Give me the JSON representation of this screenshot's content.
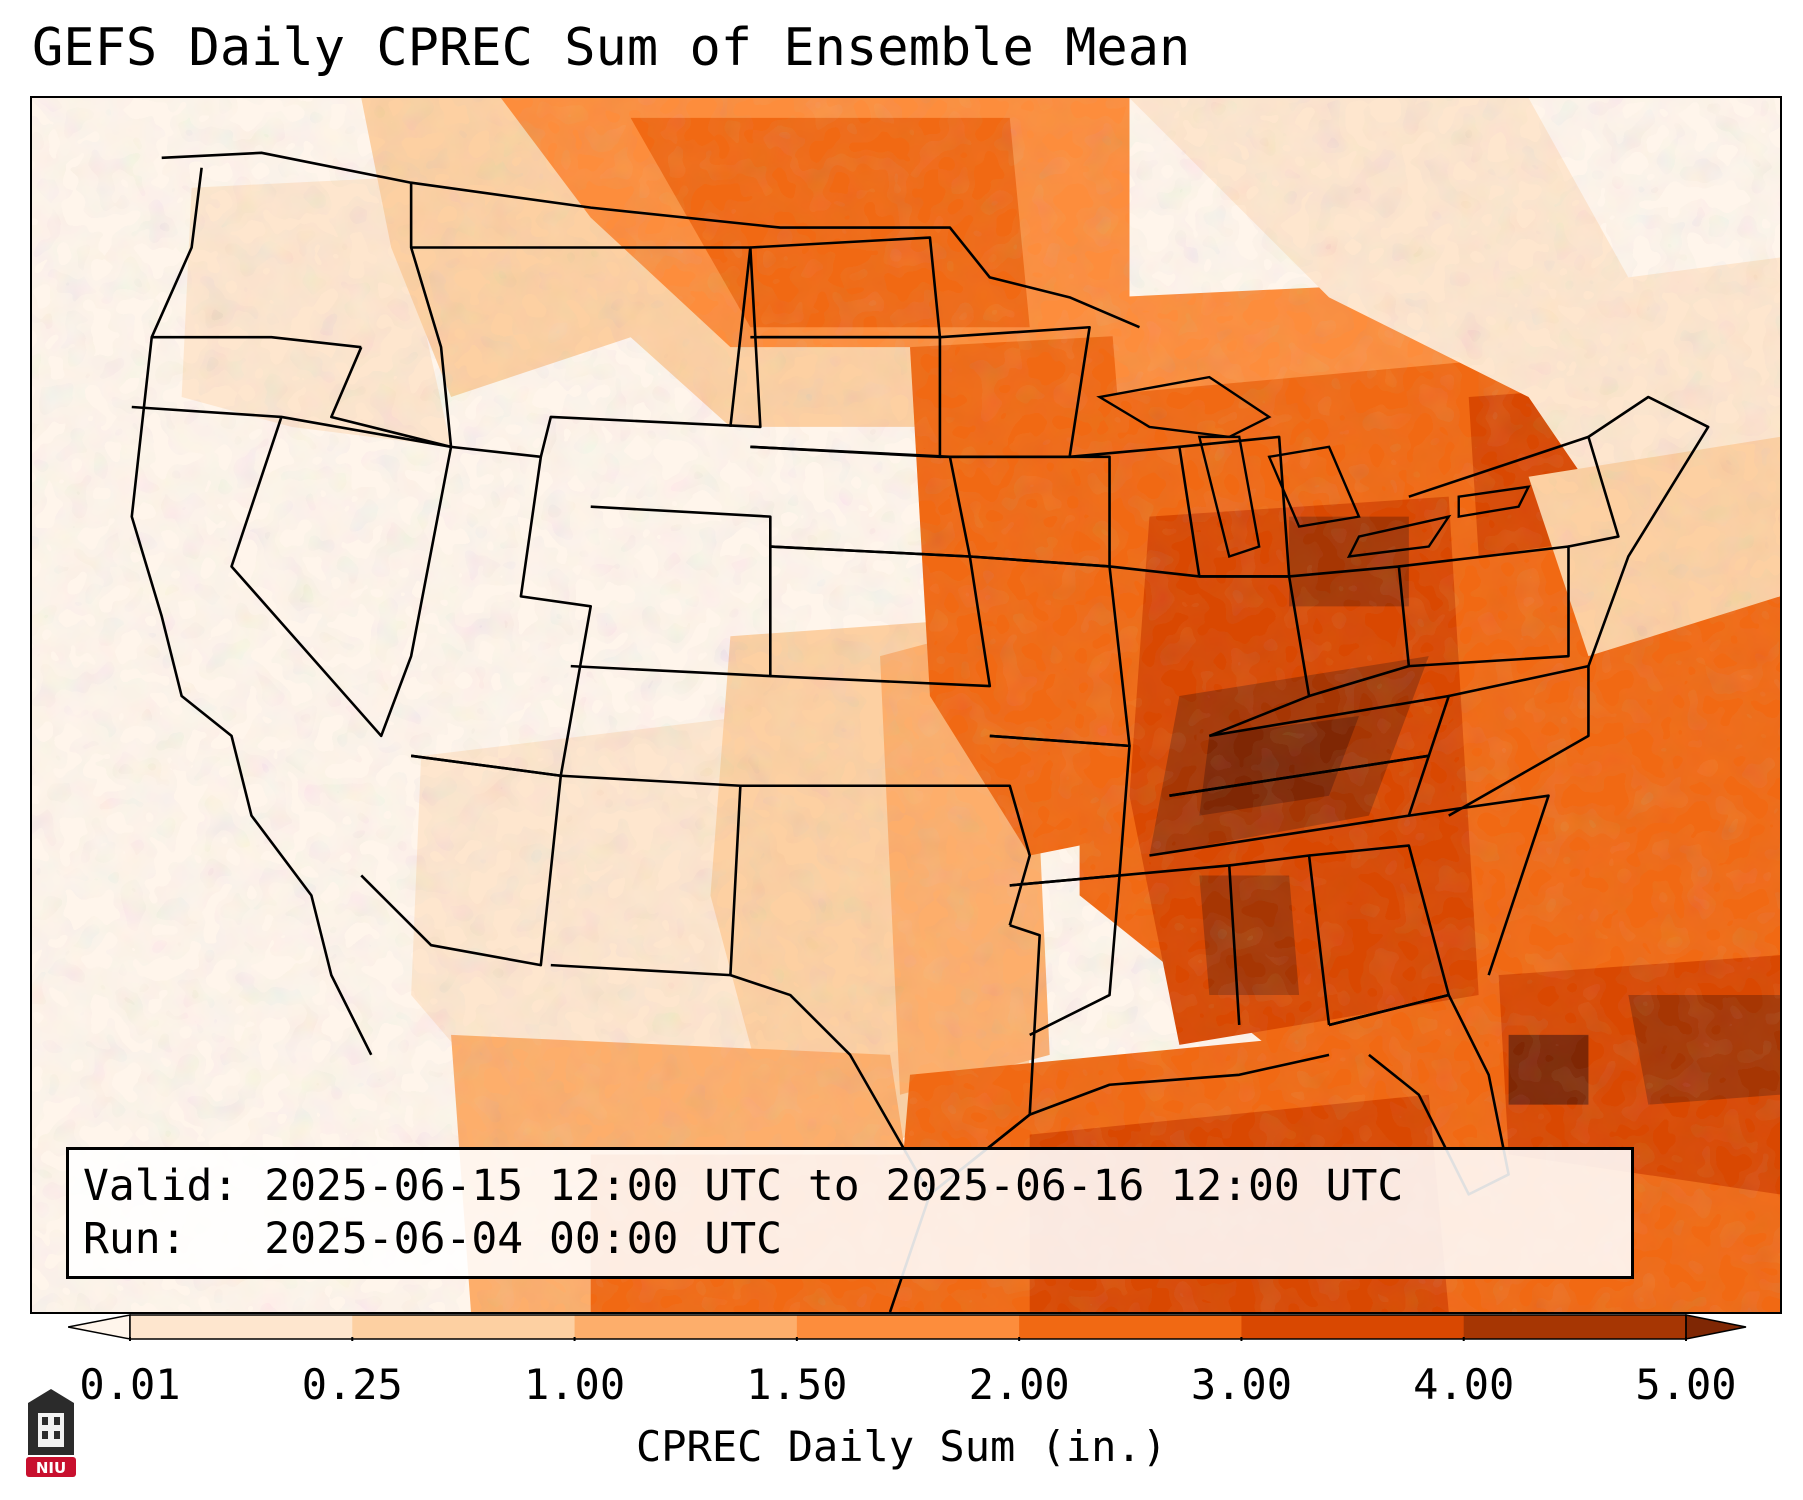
{
  "title": "GEFS Daily CPREC Sum of Ensemble Mean",
  "info": {
    "valid_label": "Valid:",
    "valid_value": "2025-06-15 12:00 UTC to 2025-06-16 12:00 UTC",
    "run_label": "Run:",
    "run_value": "2025-06-04 00:00 UTC"
  },
  "colorbar": {
    "label": "CPREC Daily Sum (in.)",
    "ticks": [
      "0.01",
      "0.25",
      "1.00",
      "1.50",
      "2.00",
      "3.00",
      "4.00",
      "5.00"
    ],
    "colors": [
      "#fff5eb",
      "#fee6ce",
      "#fdd0a2",
      "#fdae6b",
      "#fd8d3c",
      "#f16913",
      "#d94801",
      "#a63603",
      "#7f2704"
    ]
  },
  "logo": {
    "text": "NIU",
    "color": "#c8102e"
  }
}
